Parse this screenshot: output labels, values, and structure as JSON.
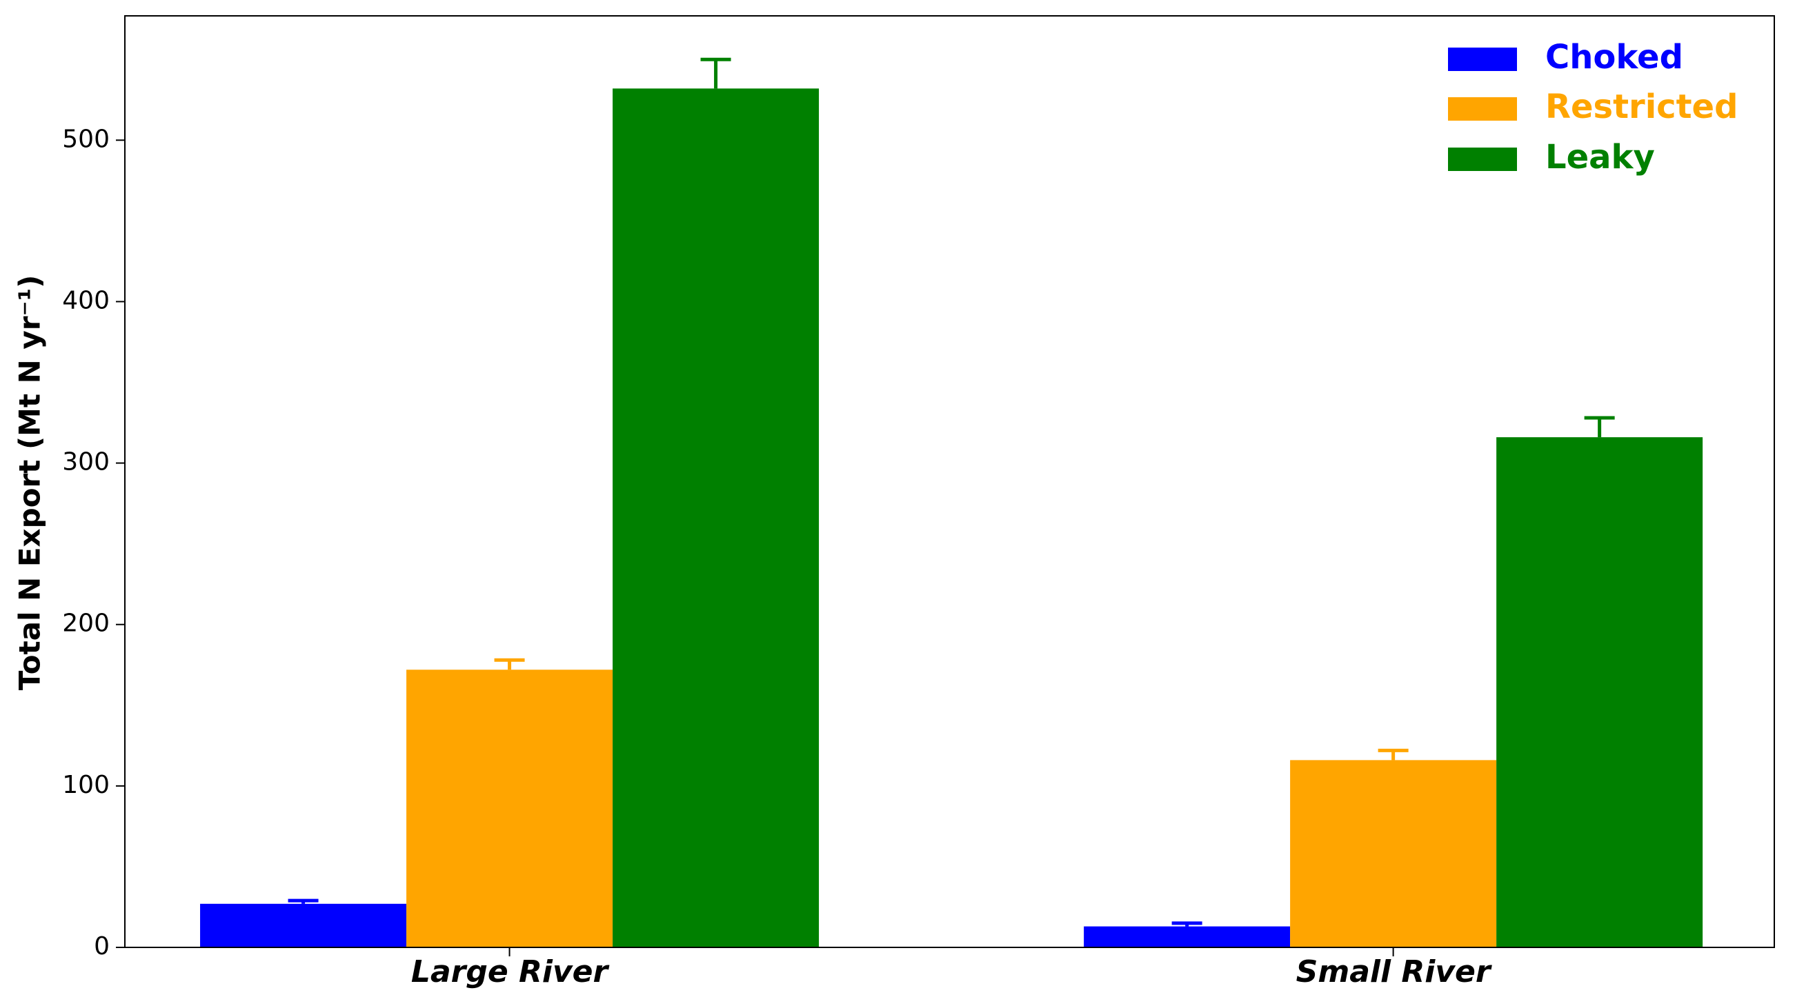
{
  "chart_data": {
    "type": "bar",
    "y_label": "Total N Export (Mt N yr⁻¹)",
    "categories": [
      "Large River",
      "Small River"
    ],
    "series": [
      {
        "name": "Choked",
        "color": "#0000ff",
        "values": [
          27,
          13
        ],
        "errors": [
          2,
          2
        ]
      },
      {
        "name": "Restricted",
        "color": "#ffa500",
        "values": [
          172,
          116
        ],
        "errors": [
          6,
          6
        ]
      },
      {
        "name": "Leaky",
        "color": "#008000",
        "values": [
          532,
          316
        ],
        "errors": [
          18,
          12
        ]
      }
    ],
    "ylim": [
      0,
      577
    ],
    "yticks": [
      0,
      100,
      200,
      300,
      400,
      500
    ],
    "legend": "upper-right"
  }
}
